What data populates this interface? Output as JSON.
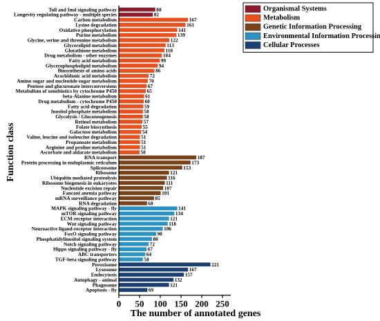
{
  "chart_data": {
    "type": "bar",
    "orientation": "horizontal",
    "xlabel": "The number of annotated genes",
    "ylabel": "Function class",
    "xlim": [
      0,
      250
    ],
    "xticks": [
      0,
      50,
      100,
      150,
      200,
      250
    ],
    "grid": false,
    "legend_position": "top-right",
    "legend": [
      {
        "name": "Organismal Systems",
        "color": "#8b1a2c"
      },
      {
        "name": "Metabolism",
        "color": "#e8501e"
      },
      {
        "name": "Genetic Information Processing",
        "color": "#7a4219"
      },
      {
        "name": "Environmental Information Processing",
        "color": "#2b93c4"
      },
      {
        "name": "Cellular Processes",
        "color": "#1b3f73"
      }
    ],
    "bars": [
      {
        "label": "Toll and Imd signaling pathway",
        "value": 88,
        "group": 0
      },
      {
        "label": "Longevity regulating pathway - multiple species",
        "value": 82,
        "group": 0
      },
      {
        "label": "Carbon metabolism",
        "value": 167,
        "group": 1
      },
      {
        "label": "Lysine degradation",
        "value": 161,
        "group": 1
      },
      {
        "label": "Oxidative phosphorylation",
        "value": 141,
        "group": 1
      },
      {
        "label": "Purine metabolism",
        "value": 139,
        "group": 1
      },
      {
        "label": "Glycine, serine and threonine metabolism",
        "value": 122,
        "group": 1
      },
      {
        "label": "Glycerolipid metabolism",
        "value": 113,
        "group": 1
      },
      {
        "label": "Glutathione metabolism",
        "value": 110,
        "group": 1
      },
      {
        "label": "Drug metabolism - other enzymes",
        "value": 104,
        "group": 1
      },
      {
        "label": "Fatty acid metabolism",
        "value": 99,
        "group": 1
      },
      {
        "label": "Glycerophospholipid metabolism",
        "value": 94,
        "group": 1
      },
      {
        "label": "Biosynthesis of amino acids",
        "value": 86,
        "group": 1
      },
      {
        "label": "Arachidonic acid metabolism",
        "value": 72,
        "group": 1
      },
      {
        "label": "Amino sugar and nucleotide sugar metabolism",
        "value": 70,
        "group": 1
      },
      {
        "label": "Pentose and glucuronate interconversions",
        "value": 67,
        "group": 1
      },
      {
        "label": "Metabolism of xenobiotics by cytochrome P450",
        "value": 65,
        "group": 1
      },
      {
        "label": "beta-Alanine metabolism",
        "value": 61,
        "group": 1
      },
      {
        "label": "Drug metabolism - cytochrome P450",
        "value": 60,
        "group": 1
      },
      {
        "label": "Fatty acid degradation",
        "value": 59,
        "group": 1
      },
      {
        "label": "Inositol phosphate metabolism",
        "value": 58,
        "group": 1
      },
      {
        "label": "Glycolysis / Gluconeogenesis",
        "value": 58,
        "group": 1
      },
      {
        "label": "Retinol metabolism",
        "value": 57,
        "group": 1
      },
      {
        "label": "Folate biosynthesis",
        "value": 55,
        "group": 1
      },
      {
        "label": "Galactose metabolism",
        "value": 54,
        "group": 1
      },
      {
        "label": "Valine, leucine and isoleucine degradation",
        "value": 51,
        "group": 1
      },
      {
        "label": "Propanoate metabolism",
        "value": 51,
        "group": 1
      },
      {
        "label": "Arginine and proline metabolism",
        "value": 51,
        "group": 1
      },
      {
        "label": "Ascorbate and aldarate metabolism",
        "value": 50,
        "group": 1
      },
      {
        "label": "RNA transport",
        "value": 187,
        "group": 2
      },
      {
        "label": "Protein processing in endoplasmic reticulum",
        "value": 173,
        "group": 2
      },
      {
        "label": "Spliceosome",
        "value": 153,
        "group": 2
      },
      {
        "label": "Ribosome",
        "value": 121,
        "group": 2
      },
      {
        "label": "Ubiquitin mediated proteolysis",
        "value": 116,
        "group": 2
      },
      {
        "label": "Ribosome biogenesis in eukaryotes",
        "value": 111,
        "group": 2
      },
      {
        "label": "Nucleotide excision repair",
        "value": 107,
        "group": 2
      },
      {
        "label": "Fanconi anemia pathway",
        "value": 101,
        "group": 2
      },
      {
        "label": "mRNA surveillance pathway",
        "value": 85,
        "group": 2
      },
      {
        "label": "RNA degradation",
        "value": 68,
        "group": 2
      },
      {
        "label": "MAPK signaling pathway - fly",
        "value": 141,
        "group": 3
      },
      {
        "label": "mTOR signaling pathway",
        "value": 134,
        "group": 3
      },
      {
        "label": "ECM-receptor interaction",
        "value": 121,
        "group": 3
      },
      {
        "label": "Wnt signaling pathway",
        "value": 118,
        "group": 3
      },
      {
        "label": "Neuroactive ligand-receptor interaction",
        "value": 106,
        "group": 3
      },
      {
        "label": "FoxO signaling pathway",
        "value": 90,
        "group": 3
      },
      {
        "label": "Phosphatidylinositol signaling system",
        "value": 80,
        "group": 3
      },
      {
        "label": "Notch signaling pathway",
        "value": 72,
        "group": 3
      },
      {
        "label": "Hippo signaling pathway - fly",
        "value": 67,
        "group": 3
      },
      {
        "label": "ABC transporters",
        "value": 64,
        "group": 3
      },
      {
        "label": "TGF-beta signaling pathway",
        "value": 58,
        "group": 3
      },
      {
        "label": "Peroxisome",
        "value": 221,
        "group": 4
      },
      {
        "label": "Lysosome",
        "value": 167,
        "group": 4
      },
      {
        "label": "Endocytosis",
        "value": 157,
        "group": 4
      },
      {
        "label": "Autophagy - animal",
        "value": 132,
        "group": 4
      },
      {
        "label": "Phagosome",
        "value": 121,
        "group": 4
      },
      {
        "label": "Apoptosis - fly",
        "value": 69,
        "group": 4
      }
    ]
  }
}
